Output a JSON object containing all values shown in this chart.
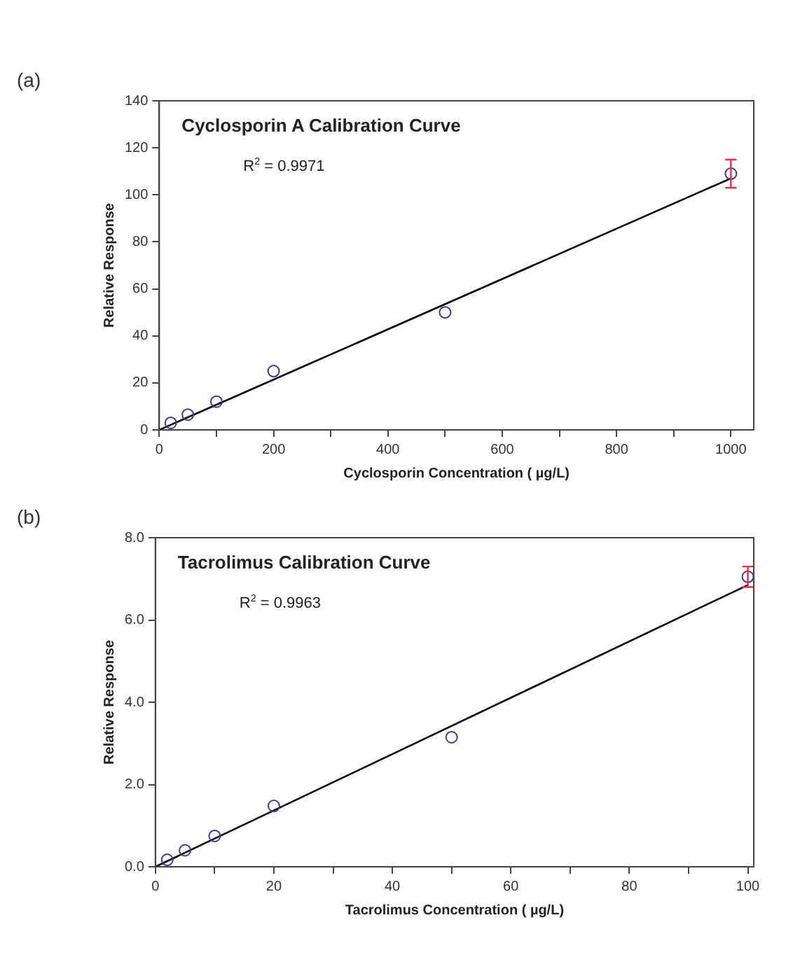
{
  "chart_data": [
    {
      "type": "scatter",
      "title": "Cyclosporin A Calibration Curve",
      "xlabel": "Cyclosporin Concentration ( µg/L)",
      "ylabel": "Relative Response",
      "annotations": [
        "(a)",
        "R$^{2}$ = 0.9971"
      ],
      "xlim": [
        0,
        1040
      ],
      "xticks": [
        0,
        {
          "value": 100,
          "label": null
        },
        200,
        {
          "value": 300,
          "label": null
        },
        400,
        {
          "value": 500,
          "label": null
        },
        600,
        {
          "value": 700,
          "label": null
        },
        800,
        {
          "value": 900,
          "label": null
        },
        1000
      ],
      "ylim": [
        0,
        140
      ],
      "yticks": [
        0,
        20,
        40,
        60,
        80,
        100,
        120,
        140
      ],
      "legend": false,
      "grid": false,
      "series": [
        {
          "color": "#3a3a9a",
          "marker": "circle",
          "x": [
            20,
            50,
            100,
            200,
            500,
            1000
          ],
          "values": [
            3,
            6.5,
            12,
            25,
            50,
            109
          ],
          "errors": [
            null,
            null,
            null,
            null,
            null,
            6
          ]
        },
        {
          "type": "line",
          "color": "#000000",
          "marker": "none",
          "x": [
            0,
            1000
          ],
          "values": [
            0,
            107
          ]
        }
      ]
    },
    {
      "type": "scatter",
      "title": "Tacrolimus Calibration Curve",
      "xlabel": "Tacrolimus Concentration ( µg/L)",
      "ylabel": "Relative Response",
      "annotations": [
        "(b)",
        "R$^{2}$ = 0.9963"
      ],
      "xlim": [
        0,
        101
      ],
      "xticks": [
        0,
        {
          "value": 10,
          "label": null
        },
        20,
        {
          "value": 30,
          "label": null
        },
        40,
        {
          "value": 50,
          "label": null
        },
        60,
        {
          "value": 70,
          "label": null
        },
        80,
        {
          "value": 90,
          "label": null
        },
        100
      ],
      "ylim": [
        0,
        8
      ],
      "yticks": [
        {
          "value": 0,
          "label": "0.0"
        },
        {
          "value": 2,
          "label": "2.0"
        },
        {
          "value": 4,
          "label": "4.0"
        },
        {
          "value": 6,
          "label": "6.0"
        },
        {
          "value": 8,
          "label": "8.0"
        }
      ],
      "legend": false,
      "grid": false,
      "series": [
        {
          "color": "#3a3a9a",
          "marker": "circle",
          "x": [
            2,
            5,
            10,
            20,
            50,
            100
          ],
          "values": [
            0.17,
            0.4,
            0.75,
            1.48,
            3.15,
            7.05
          ],
          "errors": [
            null,
            null,
            null,
            null,
            null,
            0.25
          ]
        },
        {
          "type": "line",
          "color": "#000000",
          "marker": "none",
          "x": [
            0,
            100
          ],
          "values": [
            0,
            6.85
          ]
        }
      ]
    }
  ]
}
